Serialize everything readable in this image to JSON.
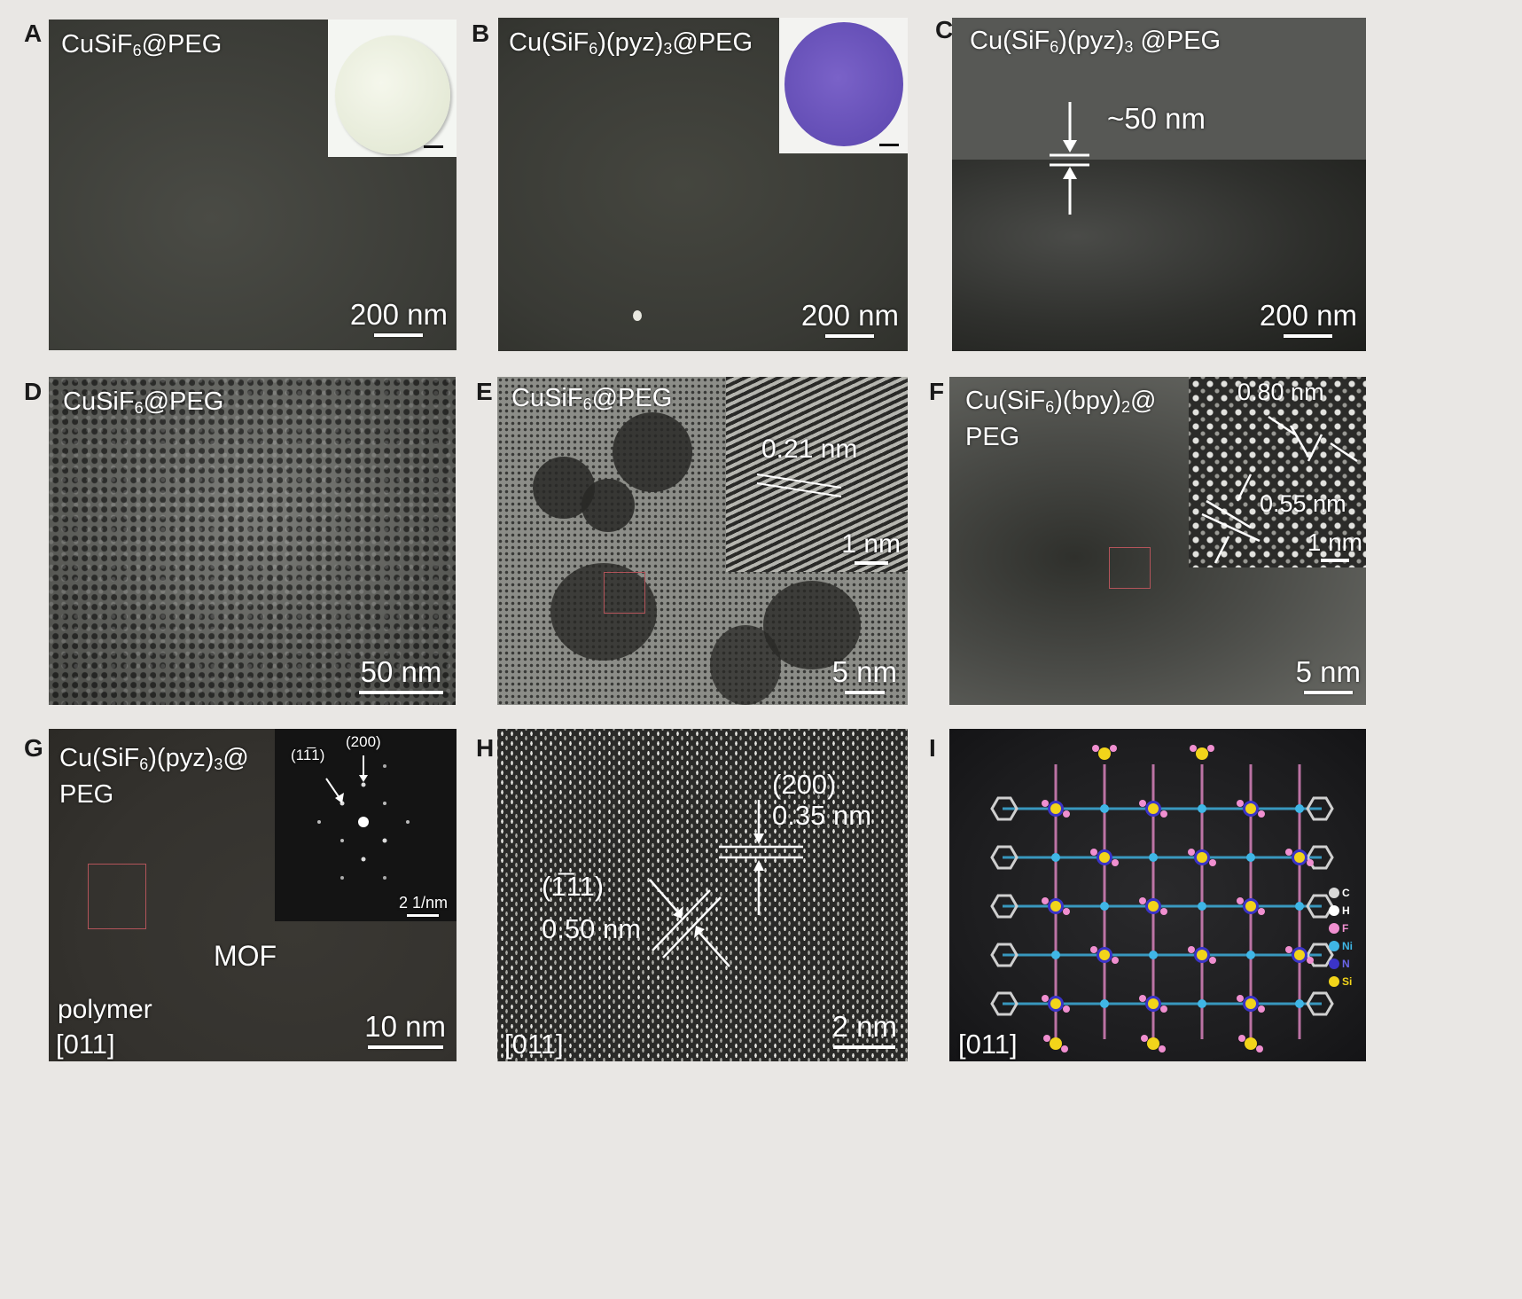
{
  "figure": {
    "panels": {
      "A": {
        "letter": "A",
        "label_main": "CuSiF",
        "label_sub": "6",
        "label_tail": "@PEG",
        "scale": "200 nm"
      },
      "B": {
        "letter": "B",
        "label_pre": "Cu(SiF",
        "label_sub1": "6",
        "label_mid": ")(pyz)",
        "label_sub2": "3",
        "label_tail": "@PEG",
        "scale": "200 nm"
      },
      "C": {
        "letter": "C",
        "label_pre": "Cu(SiF",
        "label_sub1": "6",
        "label_mid": ")(pyz)",
        "label_sub2": "3",
        "label_tail": " @PEG",
        "thickness": "~50 nm",
        "scale": "200 nm"
      },
      "D": {
        "letter": "D",
        "label_main": "CuSiF",
        "label_sub": "6",
        "label_tail": "@PEG",
        "scale": "50 nm"
      },
      "E": {
        "letter": "E",
        "label_main": "CuSiF",
        "label_sub": "6",
        "label_tail": "@PEG",
        "lattice": "0.21 nm",
        "inset_scale": "1 nm",
        "scale": "5 nm"
      },
      "F": {
        "letter": "F",
        "label_pre": "Cu(SiF",
        "label_sub1": "6",
        "label_mid": ")(bpy)",
        "label_sub2": "2",
        "label_tail": "@",
        "label_line2": "PEG",
        "spacing1": "0.80 nm",
        "spacing2": "0.55 nm",
        "inset_scale": "1 nm",
        "scale": "5 nm"
      },
      "G": {
        "letter": "G",
        "label_pre": "Cu(SiF",
        "label_sub1": "6",
        "label_mid": ")(pyz)",
        "label_sub2": "3",
        "label_tail": "@",
        "label_line2": "PEG",
        "plane1": "(11̅1)",
        "plane2": "(200)",
        "inset_scale": "2 1/nm",
        "mof": "MOF",
        "polymer": "polymer",
        "zone_axis": "[011]",
        "scale": "10 nm"
      },
      "H": {
        "letter": "H",
        "plane_a": "(200)",
        "spacing_a": "0.35 nm",
        "plane_b": "(1̅11)",
        "spacing_b": "0.50 nm",
        "zone_axis": "[011]",
        "scale": "2 nm"
      },
      "I": {
        "letter": "I",
        "zone_axis": "[011]",
        "legend": [
          "C",
          "H",
          "F",
          "Ni",
          "N",
          "Si"
        ]
      }
    }
  },
  "colors": {
    "sem_dark": "#3f403b",
    "tem_grey": "#5a5a55",
    "structure_bg": "#1c1c1e",
    "legend_C": "#d8d8d8",
    "legend_H": "#ffffff",
    "legend_F": "#f08fd0",
    "legend_Ni": "#3fb6e6",
    "legend_N": "#3b34c8",
    "legend_Si": "#f2d41a"
  }
}
